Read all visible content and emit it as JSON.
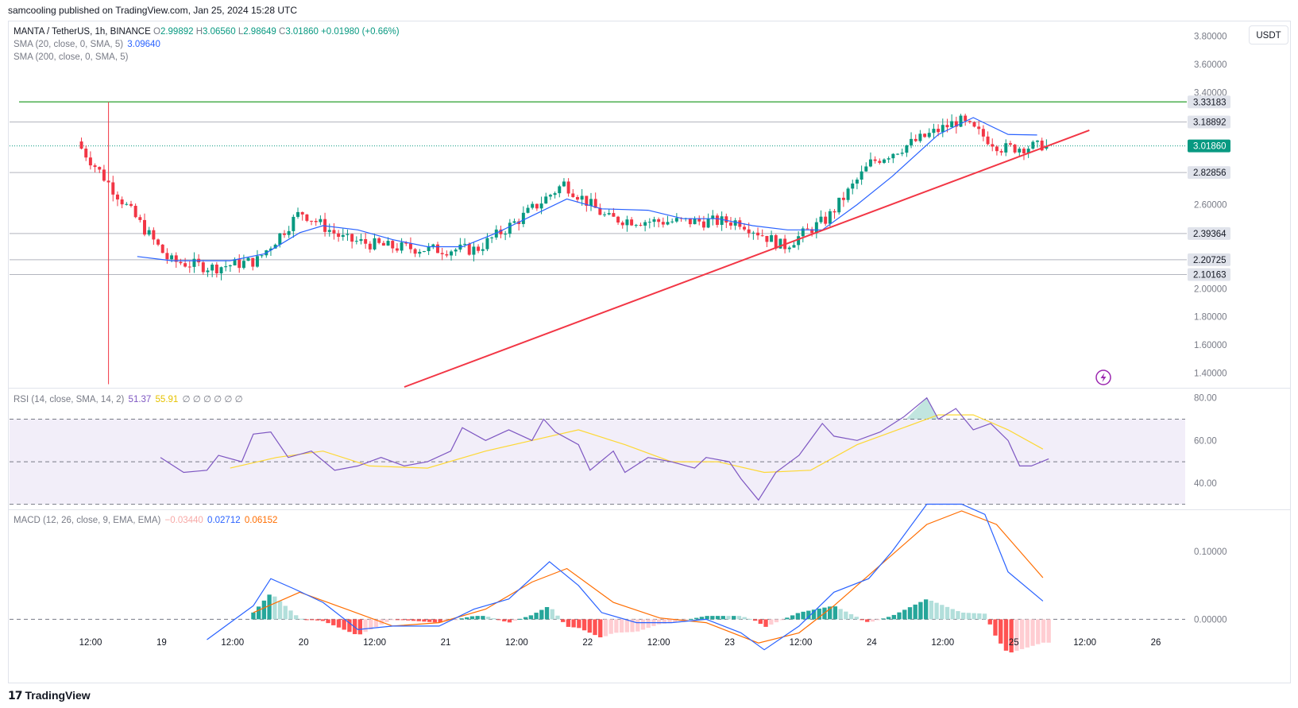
{
  "header": {
    "published": "samcooling published on TradingView.com, Jan 25, 2024 15:28 UTC"
  },
  "legend": {
    "symbol": "MANTA / TetherUS, 1h, BINANCE",
    "o_label": "O",
    "o": "2.99892",
    "h_label": "H",
    "h": "3.06560",
    "l_label": "L",
    "l": "2.98649",
    "c_label": "C",
    "c": "3.01860",
    "change": "+0.01980 (+0.66%)",
    "sma20": "SMA (20, close, 0, SMA, 5)",
    "sma20_val": "3.09640",
    "sma200": "SMA (200, close, 0, SMA, 5)",
    "rsi": "RSI (14, close, SMA, 14, 2)",
    "rsi_val": "51.37",
    "rsi_ma": "55.91",
    "rsi_extra": "∅ ∅ ∅ ∅ ∅ ∅",
    "macd": "MACD (12, 26, close, 9, EMA, EMA)",
    "macd_hist": "−0.03440",
    "macd_line": "0.02712",
    "macd_signal": "0.06152"
  },
  "currency": "USDT",
  "footer": {
    "brand": "TradingView",
    "logo": "17"
  },
  "colors": {
    "up": "#089981",
    "down": "#f23645",
    "sma": "#2962ff",
    "trend": "#f23645",
    "resistance": "#4caf50",
    "rsi": "#7e57c2",
    "rsi_ma": "#fdd835",
    "macd_signal": "#ff6d00"
  },
  "icons": {
    "flash": "lightning-icon"
  },
  "chart_data": [
    {
      "type": "candlestick",
      "ylim": [
        1.3,
        3.9
      ],
      "price_ticks": [
        "3.80000",
        "3.60000",
        "3.40000",
        "2.60000",
        "2.00000",
        "1.80000",
        "1.60000",
        "1.40000"
      ],
      "price_tick_values": [
        3.8,
        3.6,
        3.4,
        2.6,
        2.0,
        1.8,
        1.6,
        1.4
      ],
      "levels": [
        {
          "label": "3.33183",
          "value": 3.33183
        },
        {
          "label": "3.18892",
          "value": 3.18892
        },
        {
          "label": "3.01860",
          "value": 3.0186,
          "current": true
        },
        {
          "label": "2.82856",
          "value": 2.82856
        },
        {
          "label": "2.39364",
          "value": 2.39364
        },
        {
          "label": "2.20725",
          "value": 2.20725
        },
        {
          "label": "2.10163",
          "value": 2.10163
        }
      ],
      "x_ticks": [
        "12:00",
        "19",
        "12:00",
        "20",
        "12:00",
        "21",
        "12:00",
        "22",
        "12:00",
        "23",
        "12:00",
        "24",
        "12:00",
        "25",
        "12:00",
        "26"
      ],
      "anchors": [
        {
          "c": 3.0,
          "lo": 1.35,
          "hi": 3.33
        },
        {
          "c": 2.6,
          "lo": 2.3,
          "hi": 2.82
        },
        {
          "c": 2.2,
          "lo": 2.05,
          "hi": 2.4
        },
        {
          "c": 2.15,
          "lo": 2.05,
          "hi": 2.4
        },
        {
          "c": 2.2,
          "lo": 2.12,
          "hi": 2.3
        },
        {
          "c": 2.55,
          "lo": 2.2,
          "hi": 2.6
        },
        {
          "c": 2.35,
          "lo": 2.22,
          "hi": 2.45
        },
        {
          "c": 2.3,
          "lo": 2.18,
          "hi": 2.38
        },
        {
          "c": 2.28,
          "lo": 2.15,
          "hi": 2.35
        },
        {
          "c": 2.28,
          "lo": 2.2,
          "hi": 2.35
        },
        {
          "c": 2.5,
          "lo": 2.25,
          "hi": 2.6
        },
        {
          "c": 2.75,
          "lo": 2.45,
          "hi": 2.8
        },
        {
          "c": 2.5,
          "lo": 2.35,
          "hi": 2.6
        },
        {
          "c": 2.48,
          "lo": 2.38,
          "hi": 2.55
        },
        {
          "c": 2.48,
          "lo": 2.4,
          "hi": 2.55
        },
        {
          "c": 2.48,
          "lo": 2.38,
          "hi": 2.55
        },
        {
          "c": 2.3,
          "lo": 2.2,
          "hi": 2.45
        },
        {
          "c": 2.5,
          "lo": 2.3,
          "hi": 2.7
        },
        {
          "c": 2.9,
          "lo": 2.6,
          "hi": 3.0
        },
        {
          "c": 3.05,
          "lo": 2.95,
          "hi": 3.15
        },
        {
          "c": 3.2,
          "lo": 3.05,
          "hi": 3.33
        },
        {
          "c": 3.0,
          "lo": 2.85,
          "hi": 3.1
        },
        {
          "c": 3.02,
          "lo": 2.98,
          "hi": 3.07
        }
      ],
      "sma20": [
        {
          "t": 0.11,
          "v": 2.23
        },
        {
          "t": 0.14,
          "v": 2.2
        },
        {
          "t": 0.17,
          "v": 2.2
        },
        {
          "t": 0.19,
          "v": 2.2
        },
        {
          "t": 0.22,
          "v": 2.25
        },
        {
          "t": 0.25,
          "v": 2.4
        },
        {
          "t": 0.27,
          "v": 2.45
        },
        {
          "t": 0.3,
          "v": 2.42
        },
        {
          "t": 0.33,
          "v": 2.35
        },
        {
          "t": 0.36,
          "v": 2.3
        },
        {
          "t": 0.39,
          "v": 2.3
        },
        {
          "t": 0.42,
          "v": 2.4
        },
        {
          "t": 0.45,
          "v": 2.52
        },
        {
          "t": 0.48,
          "v": 2.64
        },
        {
          "t": 0.51,
          "v": 2.57
        },
        {
          "t": 0.55,
          "v": 2.56
        },
        {
          "t": 0.58,
          "v": 2.5
        },
        {
          "t": 0.61,
          "v": 2.5
        },
        {
          "t": 0.64,
          "v": 2.45
        },
        {
          "t": 0.67,
          "v": 2.42
        },
        {
          "t": 0.7,
          "v": 2.42
        },
        {
          "t": 0.73,
          "v": 2.6
        },
        {
          "t": 0.76,
          "v": 2.8
        },
        {
          "t": 0.8,
          "v": 3.1
        },
        {
          "t": 0.83,
          "v": 3.22
        },
        {
          "t": 0.86,
          "v": 3.1
        },
        {
          "t": 0.885,
          "v": 3.096
        }
      ],
      "trendline": {
        "from": {
          "t": 0.34,
          "v": 1.3
        },
        "to": {
          "t": 0.93,
          "v": 3.13
        }
      },
      "resistance": 3.33183
    },
    {
      "type": "line",
      "name": "RSI",
      "ylim": [
        28,
        84
      ],
      "ticks": [
        "80.00",
        "60.00",
        "40.00"
      ],
      "tick_values": [
        80,
        60,
        40
      ],
      "bands": [
        70,
        50,
        30
      ],
      "rsi": [
        {
          "t": 0.13,
          "v": 52
        },
        {
          "t": 0.15,
          "v": 45
        },
        {
          "t": 0.17,
          "v": 46
        },
        {
          "t": 0.18,
          "v": 53
        },
        {
          "t": 0.2,
          "v": 50
        },
        {
          "t": 0.21,
          "v": 63
        },
        {
          "t": 0.225,
          "v": 64
        },
        {
          "t": 0.24,
          "v": 52
        },
        {
          "t": 0.26,
          "v": 55
        },
        {
          "t": 0.28,
          "v": 46
        },
        {
          "t": 0.3,
          "v": 48
        },
        {
          "t": 0.32,
          "v": 52
        },
        {
          "t": 0.34,
          "v": 48
        },
        {
          "t": 0.36,
          "v": 50
        },
        {
          "t": 0.38,
          "v": 55
        },
        {
          "t": 0.39,
          "v": 66
        },
        {
          "t": 0.41,
          "v": 60
        },
        {
          "t": 0.43,
          "v": 65
        },
        {
          "t": 0.45,
          "v": 60
        },
        {
          "t": 0.46,
          "v": 70
        },
        {
          "t": 0.47,
          "v": 64
        },
        {
          "t": 0.49,
          "v": 58
        },
        {
          "t": 0.5,
          "v": 46
        },
        {
          "t": 0.52,
          "v": 55
        },
        {
          "t": 0.53,
          "v": 45
        },
        {
          "t": 0.55,
          "v": 52
        },
        {
          "t": 0.57,
          "v": 50
        },
        {
          "t": 0.59,
          "v": 47
        },
        {
          "t": 0.6,
          "v": 52
        },
        {
          "t": 0.62,
          "v": 50
        },
        {
          "t": 0.63,
          "v": 42
        },
        {
          "t": 0.645,
          "v": 32
        },
        {
          "t": 0.66,
          "v": 45
        },
        {
          "t": 0.68,
          "v": 53
        },
        {
          "t": 0.7,
          "v": 68
        },
        {
          "t": 0.71,
          "v": 62
        },
        {
          "t": 0.73,
          "v": 60
        },
        {
          "t": 0.75,
          "v": 64
        },
        {
          "t": 0.77,
          "v": 71
        },
        {
          "t": 0.79,
          "v": 80
        },
        {
          "t": 0.8,
          "v": 70
        },
        {
          "t": 0.815,
          "v": 75
        },
        {
          "t": 0.83,
          "v": 65
        },
        {
          "t": 0.845,
          "v": 68
        },
        {
          "t": 0.86,
          "v": 60
        },
        {
          "t": 0.87,
          "v": 48
        },
        {
          "t": 0.88,
          "v": 48
        },
        {
          "t": 0.895,
          "v": 51.37
        }
      ],
      "rsi_ma": [
        {
          "t": 0.19,
          "v": 47
        },
        {
          "t": 0.23,
          "v": 52
        },
        {
          "t": 0.27,
          "v": 55
        },
        {
          "t": 0.31,
          "v": 48
        },
        {
          "t": 0.36,
          "v": 47
        },
        {
          "t": 0.41,
          "v": 55
        },
        {
          "t": 0.45,
          "v": 60
        },
        {
          "t": 0.49,
          "v": 65
        },
        {
          "t": 0.53,
          "v": 58
        },
        {
          "t": 0.57,
          "v": 50
        },
        {
          "t": 0.61,
          "v": 50
        },
        {
          "t": 0.65,
          "v": 45
        },
        {
          "t": 0.69,
          "v": 46
        },
        {
          "t": 0.73,
          "v": 58
        },
        {
          "t": 0.77,
          "v": 66
        },
        {
          "t": 0.8,
          "v": 72
        },
        {
          "t": 0.83,
          "v": 72
        },
        {
          "t": 0.86,
          "v": 65
        },
        {
          "t": 0.89,
          "v": 55.91
        }
      ]
    },
    {
      "type": "line",
      "name": "MACD",
      "ylim": [
        -0.05,
        0.16
      ],
      "ticks": [
        "0.10000",
        "0.00000"
      ],
      "tick_values": [
        0.1,
        0.0
      ],
      "macd": [
        {
          "t": 0.17,
          "v": -0.03
        },
        {
          "t": 0.19,
          "v": -0.005
        },
        {
          "t": 0.21,
          "v": 0.02
        },
        {
          "t": 0.225,
          "v": 0.06
        },
        {
          "t": 0.245,
          "v": 0.045
        },
        {
          "t": 0.27,
          "v": 0.025
        },
        {
          "t": 0.3,
          "v": -0.015
        },
        {
          "t": 0.33,
          "v": -0.01
        },
        {
          "t": 0.37,
          "v": -0.01
        },
        {
          "t": 0.4,
          "v": 0.015
        },
        {
          "t": 0.43,
          "v": 0.03
        },
        {
          "t": 0.465,
          "v": 0.085
        },
        {
          "t": 0.49,
          "v": 0.05
        },
        {
          "t": 0.51,
          "v": 0.01
        },
        {
          "t": 0.54,
          "v": -0.005
        },
        {
          "t": 0.57,
          "v": -0.005
        },
        {
          "t": 0.6,
          "v": 0.0
        },
        {
          "t": 0.63,
          "v": -0.02
        },
        {
          "t": 0.65,
          "v": -0.045
        },
        {
          "t": 0.68,
          "v": -0.01
        },
        {
          "t": 0.71,
          "v": 0.04
        },
        {
          "t": 0.74,
          "v": 0.06
        },
        {
          "t": 0.76,
          "v": 0.1
        },
        {
          "t": 0.79,
          "v": 0.17
        },
        {
          "t": 0.82,
          "v": 0.17
        },
        {
          "t": 0.84,
          "v": 0.155
        },
        {
          "t": 0.86,
          "v": 0.07
        },
        {
          "t": 0.89,
          "v": 0.027
        }
      ],
      "signal": [
        {
          "t": 0.21,
          "v": 0.01
        },
        {
          "t": 0.25,
          "v": 0.04
        },
        {
          "t": 0.29,
          "v": 0.015
        },
        {
          "t": 0.33,
          "v": -0.01
        },
        {
          "t": 0.37,
          "v": -0.005
        },
        {
          "t": 0.41,
          "v": 0.015
        },
        {
          "t": 0.45,
          "v": 0.055
        },
        {
          "t": 0.48,
          "v": 0.075
        },
        {
          "t": 0.52,
          "v": 0.025
        },
        {
          "t": 0.56,
          "v": 0.002
        },
        {
          "t": 0.6,
          "v": -0.005
        },
        {
          "t": 0.645,
          "v": -0.035
        },
        {
          "t": 0.68,
          "v": -0.02
        },
        {
          "t": 0.71,
          "v": 0.02
        },
        {
          "t": 0.75,
          "v": 0.08
        },
        {
          "t": 0.79,
          "v": 0.14
        },
        {
          "t": 0.82,
          "v": 0.16
        },
        {
          "t": 0.85,
          "v": 0.14
        },
        {
          "t": 0.89,
          "v": 0.0615
        }
      ]
    }
  ]
}
